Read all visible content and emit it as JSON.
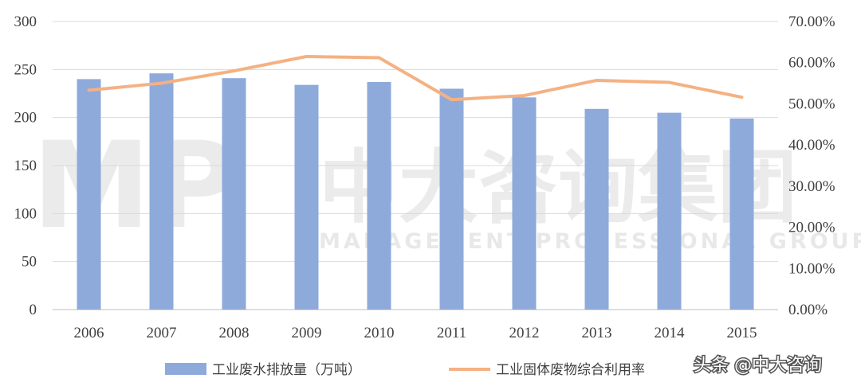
{
  "chart_data": {
    "type": "bar",
    "categories": [
      "2006",
      "2007",
      "2008",
      "2009",
      "2010",
      "2011",
      "2012",
      "2013",
      "2014",
      "2015"
    ],
    "series": [
      {
        "name": "工业废水排放量（万吨）",
        "type": "bar",
        "axis": "left",
        "color": "#8eaadb",
        "values": [
          240,
          246,
          241,
          234,
          237,
          230,
          221,
          209,
          205,
          199
        ]
      },
      {
        "name": "工业固体废物综合利用率",
        "type": "line",
        "axis": "right",
        "color": "#f4b183",
        "values": [
          53.3,
          55.0,
          58.0,
          61.5,
          61.2,
          51.0,
          52.0,
          55.7,
          55.2,
          51.6
        ]
      }
    ],
    "left_axis": {
      "ylim": [
        0,
        300
      ],
      "ticks": [
        "0",
        "50",
        "100",
        "150",
        "200",
        "250",
        "300"
      ]
    },
    "right_axis": {
      "ylim": [
        0,
        70
      ],
      "ticks": [
        "0.00%",
        "10.00%",
        "20.00%",
        "30.00%",
        "40.00%",
        "50.00%",
        "60.00%",
        "70.00%"
      ]
    },
    "grid": true,
    "legend_position": "bottom"
  },
  "watermark": {
    "logo_text": "MP",
    "company_text": "中大咨询集团",
    "tagline": "MANAGEMENT PROFESSIONAL GROUP"
  },
  "credit": "头条 @中大咨询"
}
